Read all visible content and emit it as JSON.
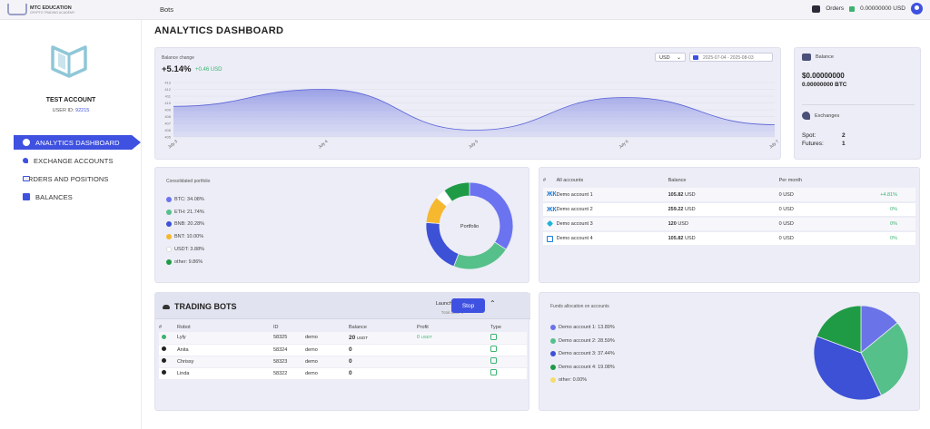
{
  "topbar": {
    "brand_main": "MTC EDUCATION",
    "brand_sub": "CRYPTO TRADING ACADEMY",
    "nav": "Bots",
    "orders": "Orders",
    "balance": "0.00000000 USD"
  },
  "sidebar": {
    "account_name": "TEST ACCOUNT",
    "user_id_label": "USER ID:",
    "user_id": "92215",
    "menu": [
      {
        "label": "ANALYTICS DASHBOARD",
        "icon": "pie-chart-icon",
        "active": true
      },
      {
        "label": "EXCHANGE ACCOUNTS",
        "icon": "key-icon"
      },
      {
        "label": "ORDERS AND POSITIONS",
        "icon": "card-icon"
      },
      {
        "label": "BALANCES",
        "icon": "bag-icon"
      }
    ]
  },
  "page_title": "ANALYTICS DASHBOARD",
  "balance_change": {
    "label": "Balance change",
    "percent": "+5.14%",
    "change": "+0.46 USD",
    "currency": "USD",
    "date_range": "2025-07-04 - 2025-08-03"
  },
  "chart_data": [
    {
      "type": "area",
      "x": [
        "July 3",
        "July 4",
        "July 5",
        "July 6",
        "July 7"
      ],
      "y_ticks": [
        "405",
        "406",
        "407",
        "408",
        "409",
        "410",
        "411",
        "412",
        "413"
      ],
      "ylim": [
        405,
        413
      ],
      "values": [
        409.5,
        412.0,
        406.0,
        410.8,
        406.8
      ],
      "color": "#7f86e0"
    },
    {
      "type": "pie",
      "title": "Portfolio",
      "labels": [
        "BTC",
        "ETH",
        "BNB",
        "BNT",
        "USDT",
        "other"
      ],
      "values": [
        34.08,
        21.74,
        20.28,
        10.0,
        3.88,
        9.86
      ],
      "colors": [
        "#6b73f0",
        "#55c08a",
        "#3d51d6",
        "#f5b82e",
        "#ffffff",
        "#1f9b46"
      ]
    },
    {
      "type": "pie",
      "title": "Funds allocation on accounts",
      "labels": [
        "Demo account 1",
        "Demo account 2",
        "Demo account 3",
        "Demo account 4",
        "other"
      ],
      "values": [
        13.89,
        28.59,
        37.44,
        19.08,
        0.0
      ],
      "colors": [
        "#6b73e8",
        "#55c08a",
        "#3d51d6",
        "#1f9b46",
        "#f5dc6e"
      ]
    }
  ],
  "side": {
    "balance_label": "Balance",
    "usd": "$0.00000000",
    "btc": "0.00000000 BTC",
    "exchanges_label": "Exchanges",
    "spot_label": "Spot:",
    "spot": "2",
    "futures_label": "Futures:",
    "futures": "1"
  },
  "portfolio": {
    "label": "Consolidated portfolio",
    "center": "Portfolio",
    "legend": [
      "BTC: 34.08%",
      "ETH: 21.74%",
      "BNB: 20.28%",
      "BNT: 10.00%",
      "USDT: 3.88%",
      "other: 9.86%"
    ]
  },
  "accounts": {
    "headers": [
      "#",
      "All accounts",
      "Balance",
      "Per month"
    ],
    "rows": [
      {
        "name": "Demo account 1",
        "balance": "105.82",
        "cur": "USD",
        "month": "0",
        "month_cur": "USD",
        "pct": "+4.81%",
        "icon": "k1"
      },
      {
        "name": "Demo account 2",
        "balance": "259.22",
        "cur": "USD",
        "month": "0",
        "month_cur": "USD",
        "pct": "0%",
        "icon": "k1"
      },
      {
        "name": "Demo account 3",
        "balance": "120",
        "cur": "USD",
        "month": "0",
        "month_cur": "USD",
        "pct": "0%",
        "icon": "k2"
      },
      {
        "name": "Demo account 4",
        "balance": "105.82",
        "cur": "USD",
        "month": "0",
        "month_cur": "USD",
        "pct": "0%",
        "icon": "k3"
      }
    ]
  },
  "bots": {
    "title": "TRADING BOTS",
    "launched": "Launched: 1",
    "total": "Total bots: 4",
    "stop": "Stop",
    "headers": [
      "#",
      "Robot",
      "ID",
      "",
      "Balance",
      "Profit",
      "Type"
    ],
    "rows": [
      {
        "robot": "Lyly",
        "id": "58325",
        "mode": "demo",
        "balance": "20",
        "bal_cur": "USDT",
        "profit": "0",
        "profit_cur": "USDT",
        "status_color": "#3cb371"
      },
      {
        "robot": "Anita",
        "id": "58324",
        "mode": "demo",
        "balance": "0",
        "bal_cur": "",
        "profit": "",
        "profit_cur": "",
        "status_color": "#222"
      },
      {
        "robot": "Chrissy",
        "id": "58323",
        "mode": "demo",
        "balance": "0",
        "bal_cur": "",
        "profit": "",
        "profit_cur": "",
        "status_color": "#222"
      },
      {
        "robot": "Linda",
        "id": "58322",
        "mode": "demo",
        "balance": "0",
        "bal_cur": "",
        "profit": "",
        "profit_cur": "",
        "status_color": "#222"
      }
    ]
  },
  "funds": {
    "label": "Funds allocation on accounts",
    "legend": [
      "Demo account 1: 13.89%",
      "Demo account 2: 28.59%",
      "Demo account 3: 37.44%",
      "Demo account 4: 19.08%",
      "other: 0.00%"
    ]
  }
}
